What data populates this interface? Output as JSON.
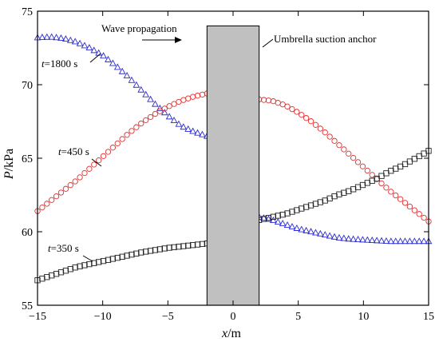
{
  "chart_data": {
    "type": "scatter",
    "xlabel": {
      "var": "x",
      "unit": "/m"
    },
    "ylabel": {
      "var": "P",
      "unit": "/kPa"
    },
    "xlim": [
      -15,
      15
    ],
    "ylim": [
      55,
      75
    ],
    "xticks": [
      -15,
      -10,
      -5,
      0,
      5,
      10,
      15
    ],
    "yticks": [
      55,
      60,
      65,
      70,
      75
    ],
    "xtick_labels": [
      "−15",
      "−10",
      "−5",
      "0",
      "5",
      "10",
      "15"
    ],
    "ytick_labels": [
      "55",
      "60",
      "65",
      "70",
      "75"
    ],
    "grid": false,
    "obstacle": {
      "label": "Umbrella suction anchor",
      "x": [
        -2,
        2
      ],
      "y": [
        55,
        74
      ],
      "color": "#c0c0c0"
    },
    "annotations": {
      "wave": "Wave propagation",
      "t1800": {
        "var": "t",
        "text": "=1800 s"
      },
      "t450": {
        "var": "t",
        "text": "=450 s"
      },
      "t350": {
        "var": "t",
        "text": "=350 s"
      }
    },
    "series": [
      {
        "marker": "triangle",
        "color": "#2b2bd0",
        "x": [
          -15,
          -14,
          -13,
          -12,
          -11,
          -10,
          -9,
          -8,
          -7,
          -6,
          -5,
          -4,
          -3,
          -2,
          2,
          3,
          4,
          5,
          6,
          7,
          8,
          9,
          10,
          11,
          12,
          13,
          14,
          15
        ],
        "y": [
          73.2,
          73.25,
          73.15,
          72.9,
          72.5,
          72.0,
          71.3,
          70.5,
          69.6,
          68.7,
          67.9,
          67.2,
          66.8,
          66.5,
          61.0,
          60.8,
          60.5,
          60.2,
          60.0,
          59.8,
          59.6,
          59.5,
          59.45,
          59.4,
          59.35,
          59.35,
          59.35,
          59.35
        ]
      },
      {
        "marker": "circle",
        "color": "#e03030",
        "x": [
          -15,
          -14,
          -13,
          -12,
          -11,
          -10,
          -9,
          -8,
          -7,
          -6,
          -5,
          -4,
          -3,
          -2,
          2,
          3,
          4,
          5,
          6,
          7,
          8,
          9,
          10,
          11,
          12,
          13,
          14,
          15
        ],
        "y": [
          61.4,
          62.1,
          62.8,
          63.5,
          64.3,
          65.1,
          65.9,
          66.7,
          67.4,
          68.0,
          68.5,
          68.9,
          69.2,
          69.4,
          69.0,
          68.9,
          68.6,
          68.1,
          67.5,
          66.8,
          66.0,
          65.2,
          64.4,
          63.6,
          62.8,
          62.1,
          61.4,
          60.7
        ]
      },
      {
        "marker": "square",
        "color": "#222222",
        "x": [
          -15,
          -14,
          -13,
          -12,
          -11,
          -10,
          -9,
          -8,
          -7,
          -6,
          -5,
          -4,
          -3,
          -2,
          2,
          3,
          4,
          5,
          6,
          7,
          8,
          9,
          10,
          11,
          12,
          13,
          14,
          15
        ],
        "y": [
          56.7,
          57.0,
          57.3,
          57.6,
          57.8,
          58.0,
          58.2,
          58.4,
          58.6,
          58.75,
          58.9,
          59.0,
          59.1,
          59.2,
          60.8,
          61.0,
          61.2,
          61.5,
          61.8,
          62.1,
          62.5,
          62.8,
          63.2,
          63.6,
          64.1,
          64.5,
          65.0,
          65.5
        ]
      }
    ]
  }
}
